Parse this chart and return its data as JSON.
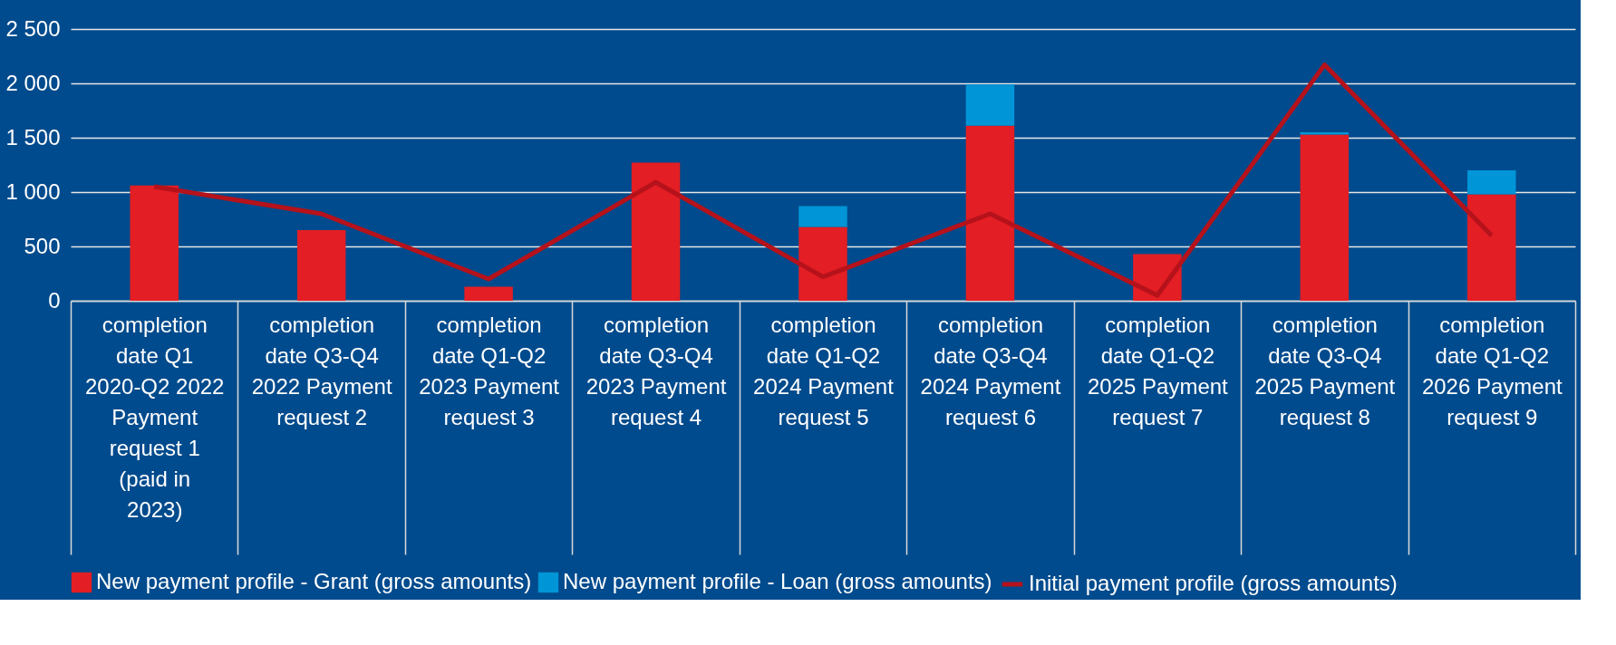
{
  "chart_data": {
    "type": "bar",
    "stacked": true,
    "categories": [
      "completion date Q1 2020-Q2 2022 Payment request 1 (paid in 2023)",
      "completion date Q3-Q4 2022 Payment request 2",
      "completion date Q1-Q2 2023 Payment request 3",
      "completion date Q3-Q4 2023 Payment request 4",
      "completion date Q1-Q2 2024 Payment request 5",
      "completion date Q3-Q4 2024 Payment request 6",
      "completion date Q1-Q2 2025 Payment request 7",
      "completion date Q3-Q4 2025 Payment request 8",
      "completion date Q1-Q2 2026 Payment request 9"
    ],
    "series": [
      {
        "name": "New payment profile - Grant (gross amounts)",
        "color": "#e31e24",
        "values": [
          1060,
          650,
          130,
          1270,
          680,
          1610,
          430,
          1530,
          980
        ]
      },
      {
        "name": "New payment profile - Loan (gross amounts)",
        "color": "#0095d6",
        "values": [
          null,
          null,
          null,
          null,
          190,
          380,
          null,
          20,
          220
        ]
      },
      {
        "name": "Initial payment profile (gross amounts)",
        "type": "line",
        "color": "#b5121b",
        "values": [
          1050,
          800,
          200,
          1090,
          220,
          800,
          50,
          2170,
          600
        ]
      }
    ],
    "ylim": [
      0,
      2500
    ],
    "yticks": [
      {
        "value": 0,
        "label": "0"
      },
      {
        "value": 500,
        "label": "500"
      },
      {
        "value": 1000,
        "label": "1 000"
      },
      {
        "value": 1500,
        "label": "1 500"
      },
      {
        "value": 2000,
        "label": "2 000"
      },
      {
        "value": 2500,
        "label": "2 500"
      }
    ],
    "grid": "y",
    "legend": "bottom",
    "marker": "none",
    "line_style": "solid"
  }
}
